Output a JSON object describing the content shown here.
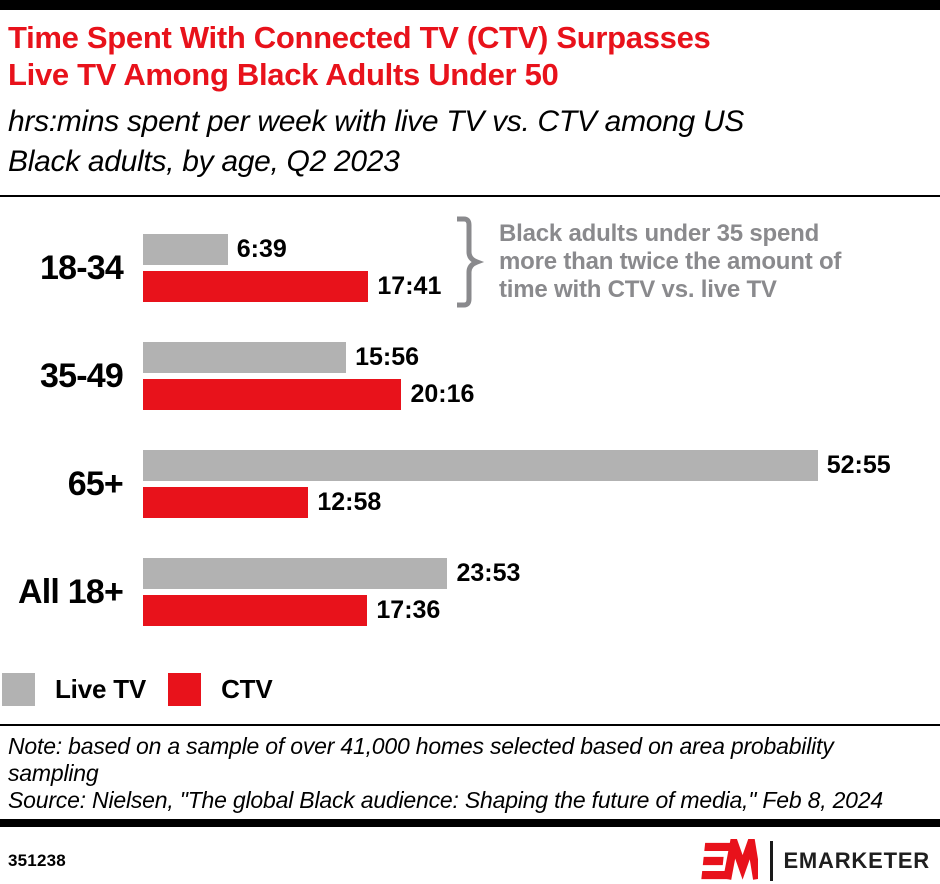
{
  "header": {
    "title_lines": [
      "Time Spent With Connected TV (CTV) Surpasses",
      "Live TV Among Black Adults Under 50"
    ],
    "subtitle_lines": [
      "hrs:mins spent per week with live TV vs. CTV among US",
      "Black adults, by age, Q2 2023"
    ]
  },
  "chart_data": {
    "type": "bar",
    "orientation": "horizontal",
    "unit": "hrs:mins spent per week",
    "categories": [
      "18-34",
      "35-49",
      "65+",
      "All 18+"
    ],
    "series": [
      {
        "name": "Live TV",
        "color": "#b2b2b2",
        "labels": [
          "6:39",
          "15:56",
          "52:55",
          "23:53"
        ],
        "values_hours": [
          6.65,
          15.93,
          52.92,
          23.88
        ]
      },
      {
        "name": "CTV",
        "color": "#e8121b",
        "labels": [
          "17:41",
          "20:16",
          "12:58",
          "17:36"
        ],
        "values_hours": [
          17.68,
          20.27,
          12.97,
          17.6
        ]
      }
    ],
    "annotation": {
      "lines": [
        "Black adults under 35 spend",
        "more than twice the amount of",
        "time with CTV vs. live TV"
      ]
    },
    "legend_position": "bottom-left",
    "grid": false,
    "x_axis": "hidden",
    "xlim_hours": [
      0,
      60.5
    ]
  },
  "footer": {
    "note_lines": [
      "Note: based on a sample of over 41,000 homes selected based on area probability",
      "sampling"
    ],
    "source_line": "Source: Nielsen, \"The global Black audience: Shaping the future of media,\" Feb 8, 2024",
    "chart_id": "351238",
    "brand": "EMARKETER"
  },
  "colors": {
    "accent_red": "#e8121b",
    "bar_gray": "#b2b2b2",
    "annotation_gray": "#8a8a8d",
    "text_black": "#000000"
  }
}
